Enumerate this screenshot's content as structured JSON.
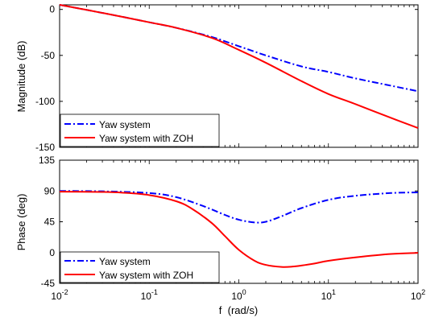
{
  "chart_data": [
    {
      "type": "line",
      "panel": "magnitude",
      "xscale": "log",
      "xlim": [
        0.01,
        100
      ],
      "ylim": [
        -150,
        5
      ],
      "yticks": [
        0,
        -50,
        -100,
        -150
      ],
      "ylabel": "Magnitude (dB)",
      "grid": false,
      "legend_placement": "bottom-left",
      "series": [
        {
          "name": "Yaw system",
          "color": "#0000ff",
          "style": "dash-dot",
          "x": [
            0.01,
            0.02,
            0.05,
            0.1,
            0.2,
            0.5,
            1,
            2,
            5,
            10,
            20,
            50,
            100
          ],
          "y": [
            5,
            -0.5,
            -8,
            -14,
            -20,
            -30,
            -40,
            -50,
            -62,
            -68,
            -75,
            -83,
            -89
          ]
        },
        {
          "name": "Yaw system with ZOH",
          "color": "#ff0000",
          "style": "solid",
          "x": [
            0.01,
            0.02,
            0.05,
            0.1,
            0.2,
            0.5,
            1,
            2,
            5,
            10,
            20,
            50,
            100
          ],
          "y": [
            5,
            -0.5,
            -8,
            -14,
            -20,
            -31,
            -44,
            -58,
            -78,
            -92,
            -103,
            -118,
            -129
          ]
        }
      ]
    },
    {
      "type": "line",
      "panel": "phase",
      "xscale": "log",
      "xlim": [
        0.01,
        100
      ],
      "ylim": [
        -45,
        135
      ],
      "yticks": [
        135,
        90,
        45,
        0,
        -45
      ],
      "ylabel": "Phase (deg)",
      "xlabel": "f  (rad/s)",
      "xticks": [
        "10^-2",
        "10^-1",
        "10^0",
        "10^1",
        "10^2"
      ],
      "grid": false,
      "legend_placement": "bottom-left",
      "series": [
        {
          "name": "Yaw system",
          "color": "#0000ff",
          "style": "dash-dot",
          "x": [
            0.01,
            0.03,
            0.1,
            0.2,
            0.4,
            0.7,
            1,
            1.5,
            2,
            3,
            5,
            10,
            20,
            50,
            100
          ],
          "y": [
            90,
            89.5,
            87,
            81,
            68,
            55,
            48,
            44,
            45,
            53,
            65,
            77,
            83,
            87,
            88
          ]
        },
        {
          "name": "Yaw system with ZOH",
          "color": "#ff0000",
          "style": "solid",
          "x": [
            0.01,
            0.03,
            0.05,
            0.1,
            0.2,
            0.3,
            0.5,
            0.7,
            1,
            1.5,
            2,
            3,
            4,
            5,
            7,
            10,
            20,
            50,
            100
          ],
          "y": [
            89,
            88.5,
            87.5,
            84,
            75,
            64,
            43,
            24,
            4,
            -12,
            -18,
            -21,
            -20.5,
            -19,
            -16,
            -12,
            -7,
            -2,
            -0.5
          ]
        }
      ]
    }
  ],
  "legends": {
    "magnitude": [
      "Yaw system",
      "Yaw system with ZOH"
    ],
    "phase": [
      "Yaw system",
      "Yaw system with ZOH"
    ]
  }
}
